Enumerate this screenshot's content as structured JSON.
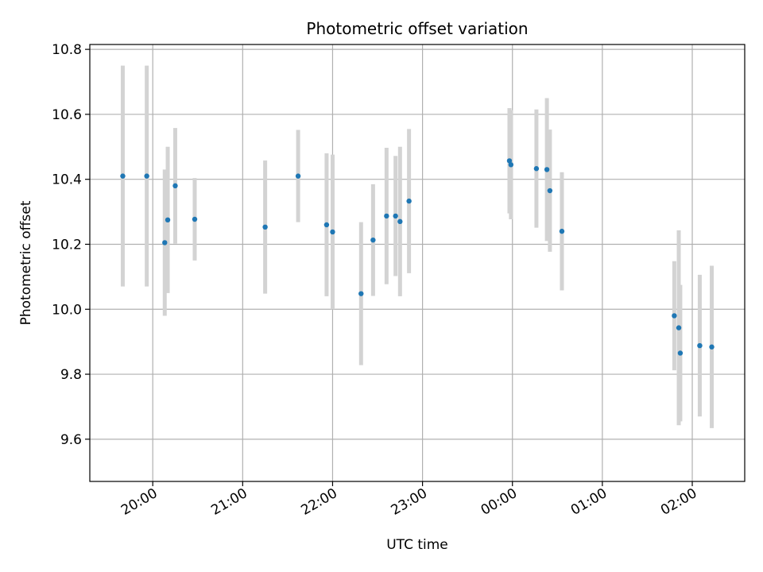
{
  "chart_data": {
    "type": "scatter",
    "title": "Photometric offset variation",
    "xlabel": "UTC time",
    "ylabel": "Photometric offset",
    "x_unit": "UTC time of day; times after midnight continue past 24:00",
    "xlim": [
      "19:18",
      "26:35"
    ],
    "ylim": [
      9.47,
      10.815
    ],
    "x_ticks": [
      "20:00",
      "21:00",
      "22:00",
      "23:00",
      "00:00",
      "01:00",
      "02:00"
    ],
    "y_ticks": [
      9.6,
      9.8,
      10.0,
      10.2,
      10.4,
      10.6,
      10.8
    ],
    "grid": true,
    "colors": {
      "marker": "#1f77b4",
      "errorbar": "#d3d3d3",
      "grid": "#b0b0b0"
    },
    "points": [
      {
        "x": "19:40",
        "y": 10.41,
        "err": 0.34
      },
      {
        "x": "19:56",
        "y": 10.41,
        "err": 0.34
      },
      {
        "x": "20:08",
        "y": 10.205,
        "err": 0.225
      },
      {
        "x": "20:10",
        "y": 10.275,
        "err": 0.225
      },
      {
        "x": "20:15",
        "y": 10.38,
        "err": 0.178
      },
      {
        "x": "20:28",
        "y": 10.277,
        "err": 0.127
      },
      {
        "x": "21:15",
        "y": 10.253,
        "err": 0.205
      },
      {
        "x": "21:37",
        "y": 10.41,
        "err": 0.142
      },
      {
        "x": "21:56",
        "y": 10.26,
        "err": 0.22
      },
      {
        "x": "22:00",
        "y": 10.238,
        "err": 0.238
      },
      {
        "x": "22:19",
        "y": 10.048,
        "err": 0.22
      },
      {
        "x": "22:27",
        "y": 10.213,
        "err": 0.172
      },
      {
        "x": "22:36",
        "y": 10.287,
        "err": 0.21
      },
      {
        "x": "22:42",
        "y": 10.287,
        "err": 0.185
      },
      {
        "x": "22:45",
        "y": 10.27,
        "err": 0.23
      },
      {
        "x": "22:51",
        "y": 10.333,
        "err": 0.222
      },
      {
        "x": "23:58",
        "y": 10.457,
        "err": 0.162
      },
      {
        "x": "23:59",
        "y": 10.445,
        "err": 0.168
      },
      {
        "x": "24:16",
        "y": 10.433,
        "err": 0.182
      },
      {
        "x": "24:23",
        "y": 10.43,
        "err": 0.22
      },
      {
        "x": "24:25",
        "y": 10.365,
        "err": 0.188
      },
      {
        "x": "24:33",
        "y": 10.24,
        "err": 0.182
      },
      {
        "x": "25:48",
        "y": 9.98,
        "err": 0.168
      },
      {
        "x": "25:51",
        "y": 9.943,
        "err": 0.3
      },
      {
        "x": "25:52",
        "y": 9.865,
        "err": 0.21
      },
      {
        "x": "26:05",
        "y": 9.888,
        "err": 0.218
      },
      {
        "x": "26:13",
        "y": 9.884,
        "err": 0.25
      }
    ]
  }
}
